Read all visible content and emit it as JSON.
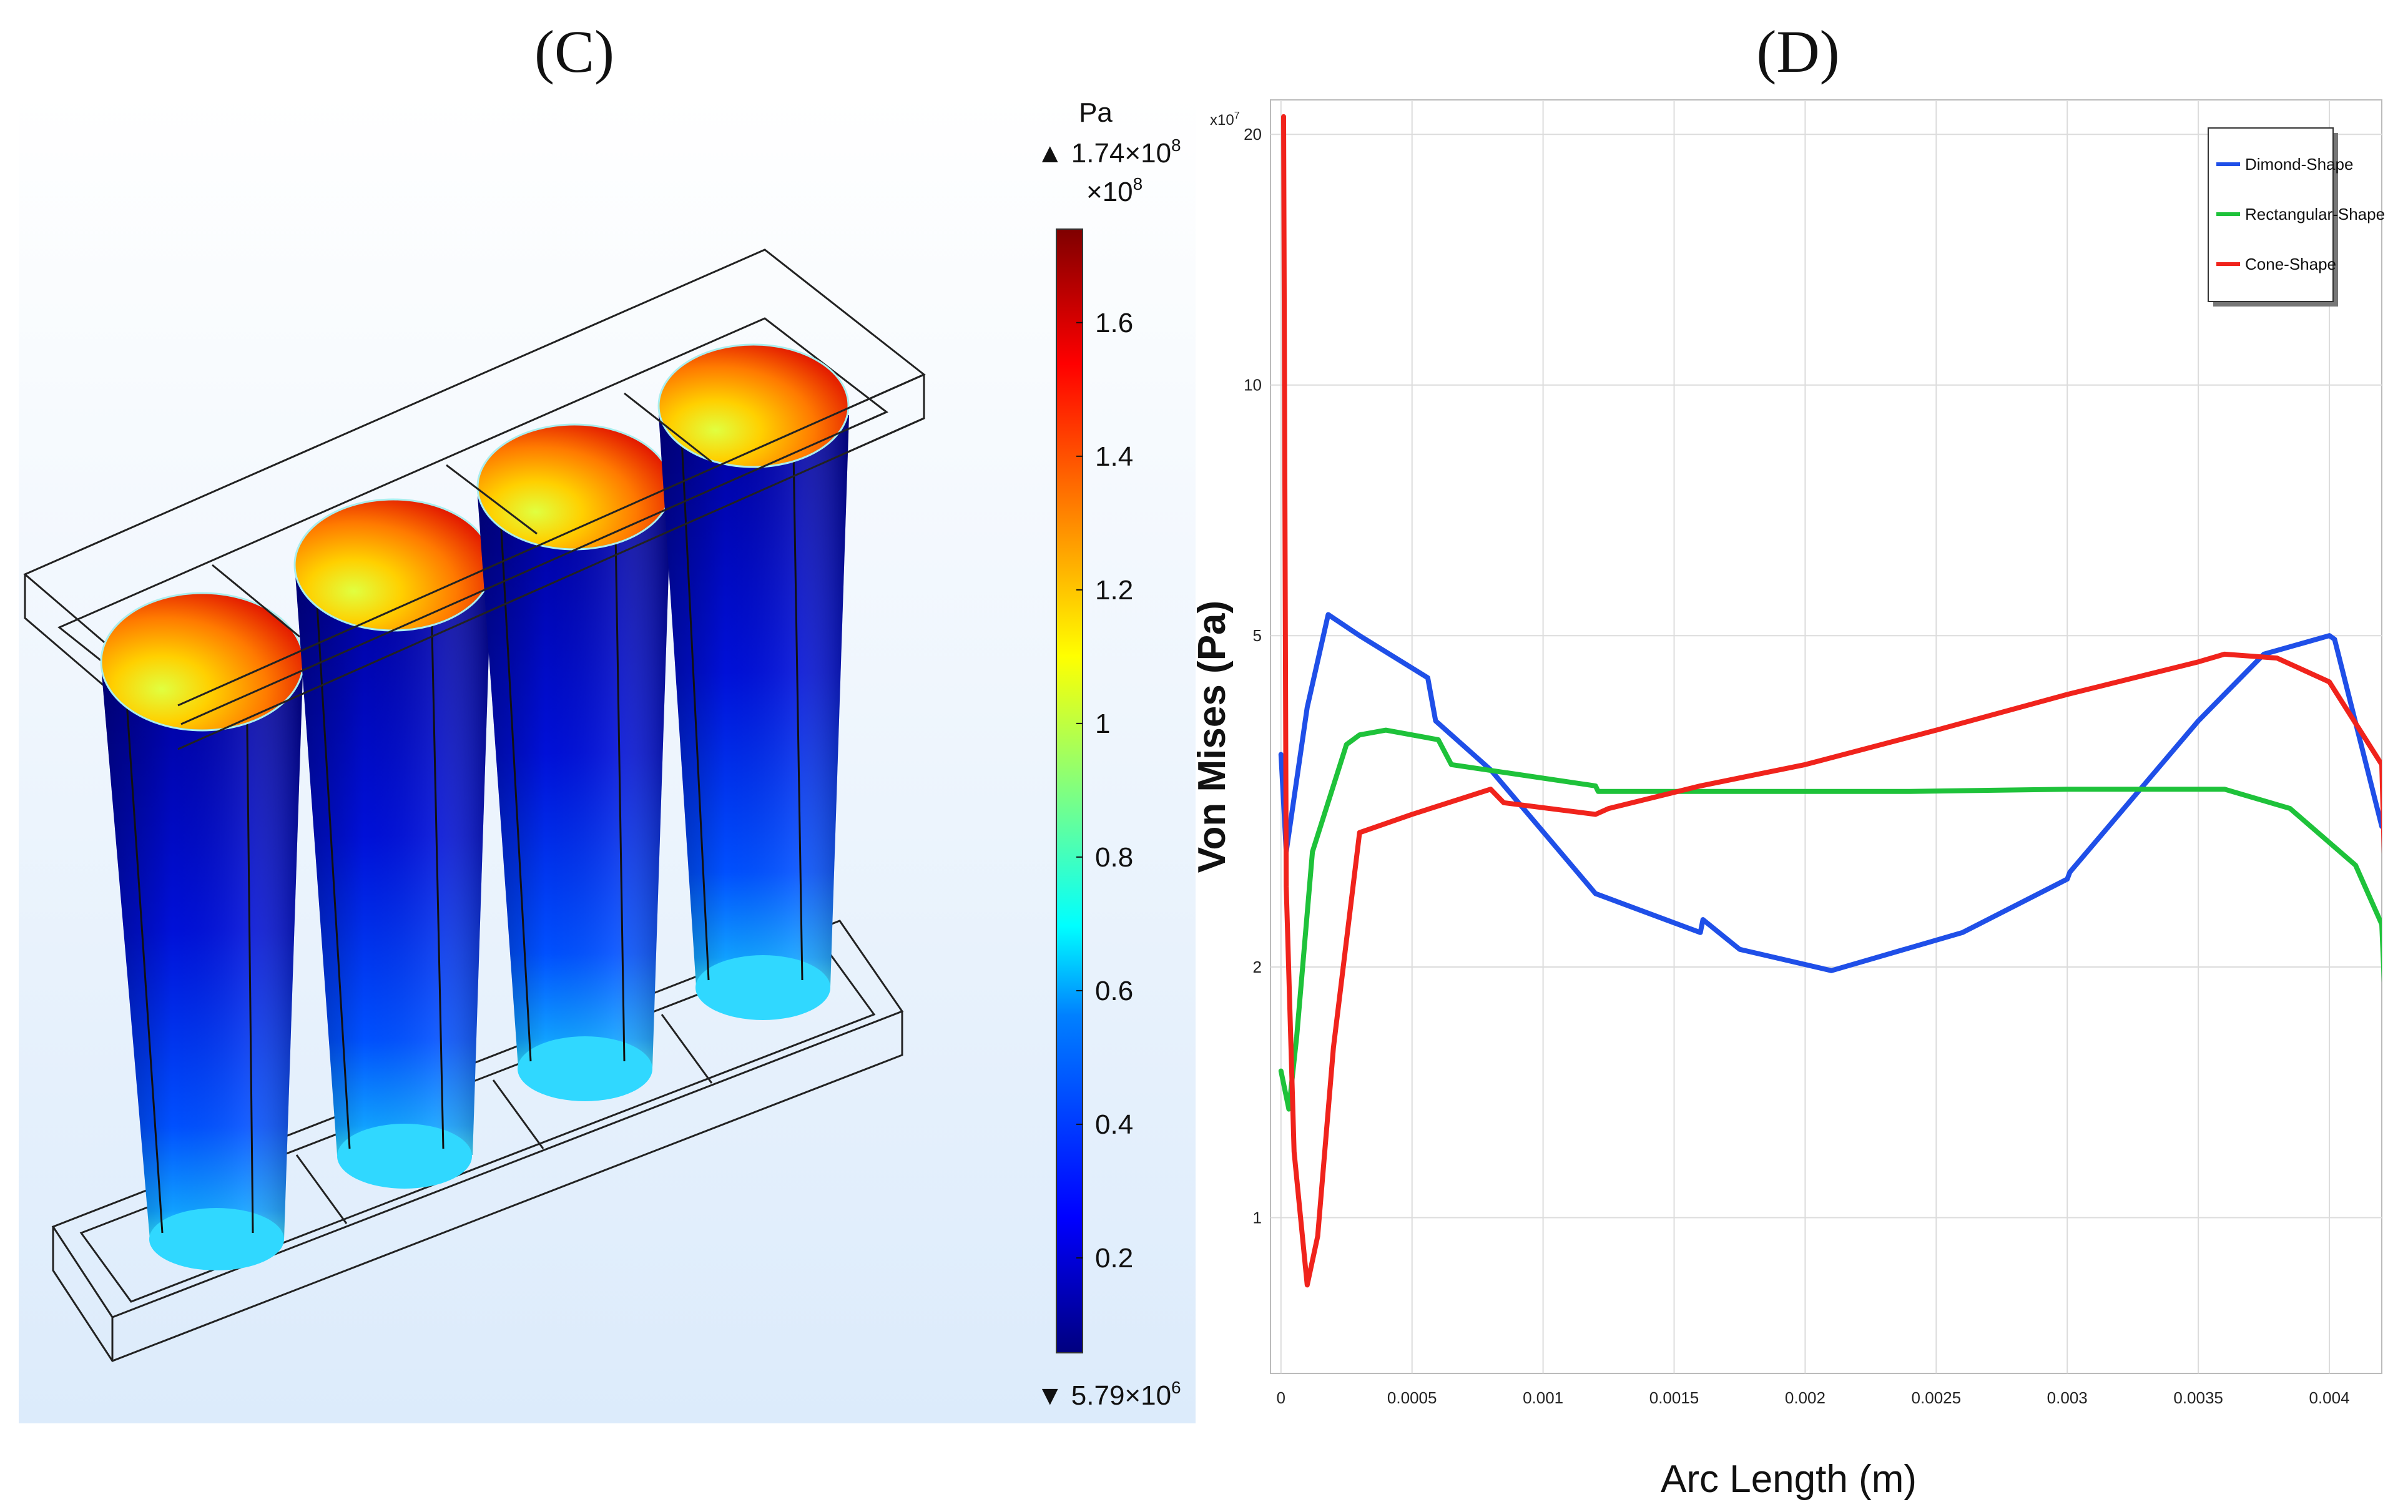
{
  "chart_data": [
    {
      "type": "heatmap",
      "panel_label": "(C)",
      "subject": "Von Mises stress surface plot on four cone-shaped posts",
      "colorbar": {
        "unit": "Pa",
        "max_label": "▲ 1.74×10",
        "max_exp": "8",
        "scale_label": "×10",
        "scale_exp": "8",
        "min_label": "▼ 5.79×10",
        "min_exp": "6",
        "ticks": [
          0.2,
          0.4,
          0.6,
          0.8,
          1,
          1.2,
          1.4,
          1.6
        ],
        "tick_labels": [
          "0.2",
          "0.4",
          "0.6",
          "0.8",
          "1",
          "1.2",
          "1.4",
          "1.6"
        ],
        "range": [
          0.0579,
          1.74
        ],
        "colors": [
          "#00007f",
          "#0000ff",
          "#0080ff",
          "#00ffff",
          "#80ff80",
          "#ffff00",
          "#ff8000",
          "#ff0000",
          "#7f0000"
        ]
      }
    },
    {
      "type": "line",
      "panel_label": "(D)",
      "xlabel": "Arc Length (m)",
      "ylabel": "Von Mises (Pa)",
      "y_scale_note": "x10",
      "y_scale_exp": "7",
      "yscale": "log",
      "xlim": [
        -4e-05,
        0.0042
      ],
      "ylim": [
        0.65,
        22
      ],
      "x_ticks": [
        0,
        0.0005,
        0.001,
        0.0015,
        0.002,
        0.0025,
        0.003,
        0.0035,
        0.004
      ],
      "x_tick_labels": [
        "0",
        "0.0005",
        "0.001",
        "0.0015",
        "0.002",
        "0.0025",
        "0.003",
        "0.0035",
        "0.004"
      ],
      "y_ticks": [
        1,
        2,
        5,
        10,
        20
      ],
      "y_tick_labels": [
        "1",
        "2",
        "5",
        "10",
        "20"
      ],
      "grid": true,
      "legend_position": "top-right",
      "series": [
        {
          "name": "Dimond-Shape",
          "color": "#1f4fe8",
          "x": [
            0,
            2e-05,
            0.0001,
            0.00018,
            0.0003,
            0.00056,
            0.00059,
            0.0008,
            0.0012,
            0.0016,
            0.00161,
            0.00175,
            0.0021,
            0.0026,
            0.003,
            0.00301,
            0.0035,
            0.00375,
            0.004,
            0.00402,
            0.0042
          ],
          "y": [
            3.6,
            2.75,
            4.1,
            5.3,
            5.0,
            4.45,
            3.95,
            3.45,
            2.45,
            2.2,
            2.28,
            2.1,
            1.98,
            2.2,
            2.55,
            2.6,
            3.95,
            4.75,
            5.0,
            4.95,
            2.95
          ]
        },
        {
          "name": "Rectangular-Shape",
          "color": "#1ec23a",
          "x": [
            0,
            3e-05,
            6e-05,
            0.00012,
            0.00025,
            0.0003,
            0.0004,
            0.0006,
            0.00065,
            0.0012,
            0.00121,
            0.0018,
            0.0024,
            0.003,
            0.0036,
            0.00385,
            0.0041,
            0.0042,
            0.00421
          ],
          "y": [
            1.5,
            1.35,
            1.65,
            2.75,
            3.7,
            3.8,
            3.85,
            3.75,
            3.5,
            3.3,
            3.25,
            3.25,
            3.25,
            3.27,
            3.27,
            3.1,
            2.65,
            2.25,
            1.9
          ]
        },
        {
          "name": "Cone-Shape",
          "color": "#f0231c",
          "x": [
            1e-05,
            2e-05,
            5e-05,
            0.0001,
            0.00014,
            0.0002,
            0.0003,
            0.0005,
            0.0008,
            0.00085,
            0.0012,
            0.00125,
            0.0016,
            0.002,
            0.0025,
            0.003,
            0.0035,
            0.0036,
            0.0038,
            0.004,
            0.0042,
            0.00421
          ],
          "y": [
            21,
            2.5,
            1.2,
            0.83,
            0.95,
            1.6,
            2.9,
            3.05,
            3.27,
            3.15,
            3.05,
            3.1,
            3.3,
            3.5,
            3.85,
            4.25,
            4.65,
            4.75,
            4.7,
            4.4,
            3.5,
            2.7
          ]
        }
      ]
    }
  ]
}
